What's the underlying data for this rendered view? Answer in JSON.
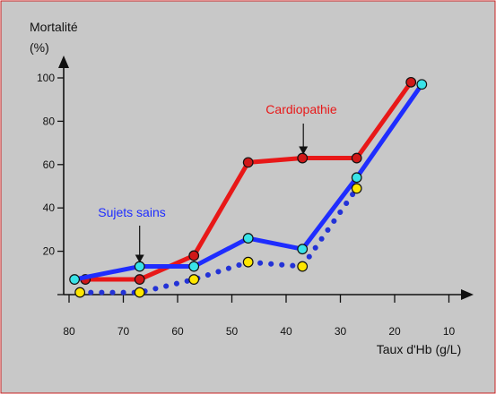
{
  "chart_data": {
    "type": "line",
    "ylabel_line1": "Mortalité",
    "ylabel_line2": "(%)",
    "xlabel": "Taux d'Hb (g/L)",
    "xlim": [
      80,
      10
    ],
    "ylim": [
      0,
      100
    ],
    "x_ticks": [
      80,
      70,
      60,
      50,
      40,
      30,
      20,
      10
    ],
    "y_ticks": [
      20,
      40,
      60,
      80,
      100
    ],
    "grid": false,
    "colors": {
      "background": "#c8c8c8",
      "border": "#c91f1f",
      "axis": "#111111",
      "red": "#e81818",
      "blue": "#1f2dff",
      "dotted": "#2332d7",
      "marker_red": "#d01818",
      "marker_cyan": "#39e3e8",
      "marker_yellow": "#ffe600"
    },
    "series": [
      {
        "name": "Cardiopathie",
        "style": "solid",
        "color": "#e81818",
        "marker": "#d01818",
        "points": [
          {
            "x": 76,
            "y": 7
          },
          {
            "x": 66,
            "y": 7
          },
          {
            "x": 56,
            "y": 18
          },
          {
            "x": 46,
            "y": 61
          },
          {
            "x": 36,
            "y": 63
          },
          {
            "x": 26,
            "y": 63
          },
          {
            "x": 16,
            "y": 98
          }
        ]
      },
      {
        "name": "Sujets sains",
        "style": "solid",
        "color": "#1f2dff",
        "marker": "#39e3e8",
        "points": [
          {
            "x": 78,
            "y": 7
          },
          {
            "x": 66,
            "y": 13
          },
          {
            "x": 56,
            "y": 13
          },
          {
            "x": 46,
            "y": 26
          },
          {
            "x": 36,
            "y": 21
          },
          {
            "x": 26,
            "y": 54
          },
          {
            "x": 14,
            "y": 97
          }
        ]
      },
      {
        "name": "",
        "style": "dotted",
        "color": "#2332d7",
        "marker": "#ffe600",
        "points": [
          {
            "x": 77,
            "y": 1
          },
          {
            "x": 66,
            "y": 1
          },
          {
            "x": 56,
            "y": 7
          },
          {
            "x": 46,
            "y": 15
          },
          {
            "x": 36,
            "y": 13
          },
          {
            "x": 26,
            "y": 49
          }
        ]
      }
    ],
    "annotations": [
      {
        "text": "Cardiopathie",
        "target_series": 0,
        "target_point": 4,
        "color": "#e81818"
      },
      {
        "text": "Sujets sains",
        "target_series": 1,
        "target_point": 1,
        "color": "#1f2dff"
      }
    ]
  }
}
